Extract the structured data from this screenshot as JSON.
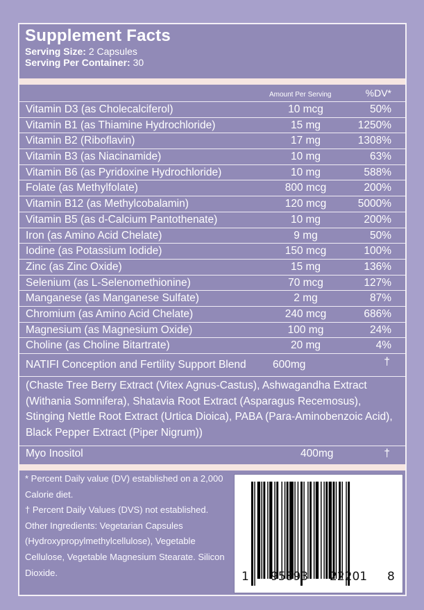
{
  "title": "Supplement Facts",
  "serving_size_label": "Serving Size:",
  "serving_size": "2 Capsules",
  "serving_per_container_label": "Serving Per Container:",
  "serving_per_container": "30",
  "header": {
    "amount": "Amount Per Serving",
    "dv": "%DV*"
  },
  "rows": [
    {
      "name": "Vitamin D3 (as Cholecalciferol)",
      "amount": "10 mcg",
      "dv": "50%"
    },
    {
      "name": "Vitamin B1 (as Thiamine Hydrochloride)",
      "amount": "15 mg",
      "dv": "1250%"
    },
    {
      "name": "Vitamin B2 (Riboflavin)",
      "amount": "17 mg",
      "dv": "1308%"
    },
    {
      "name": "Vitamin B3 (as Niacinamide)",
      "amount": "10 mg",
      "dv": "63%"
    },
    {
      "name": "Vitamin B6 (as Pyridoxine Hydrochloride)",
      "amount": "10 mg",
      "dv": "588%"
    },
    {
      "name": "Folate (as Methylfolate)",
      "amount": "800 mcg",
      "dv": "200%"
    },
    {
      "name": "Vitamin B12 (as Methylcobalamin)",
      "amount": "120 mcg",
      "dv": "5000%"
    },
    {
      "name": "Vitamin B5 (as d-Calcium Pantothenate)",
      "amount": "10 mg",
      "dv": "200%"
    },
    {
      "name": "Iron (as Amino Acid Chelate)",
      "amount": "9 mg",
      "dv": "50%"
    },
    {
      "name": "Iodine (as Potassium Iodide)",
      "amount": "150 mcg",
      "dv": "100%"
    },
    {
      "name": "Zinc (as Zinc Oxide)",
      "amount": "15 mg",
      "dv": "136%"
    },
    {
      "name": "Selenium (as L-Selenomethionine)",
      "amount": "70 mcg",
      "dv": "127%"
    },
    {
      "name": "Manganese (as Manganese Sulfate)",
      "amount": "2 mg",
      "dv": "87%"
    },
    {
      "name": "Chromium (as Amino Acid Chelate)",
      "amount": "240 mcg",
      "dv": "686%"
    },
    {
      "name": "Magnesium (as Magnesium Oxide)",
      "amount": "100 mg",
      "dv": "24%"
    },
    {
      "name": "Choline (as Choline Bitartrate)",
      "amount": "20 mg",
      "dv": "4%"
    }
  ],
  "blend": {
    "name": "NATIFI Conception and Fertility Support Blend",
    "amount": "600mg",
    "dv": "†",
    "ingredients": "(Chaste Tree Berry Extract (Vitex Agnus-Castus), Ashwagandha Extract (Withania Somnifera), Shatavia Root Extract (Asparagus Recemosus), Stinging Nettle Root Extract (Urtica Dioica), PABA (Para-Aminobenzoic Acid), Black Pepper Extract (Piper Nigrum))"
  },
  "myo": {
    "name": "Myo Inositol",
    "amount": "400mg",
    "dv": "†"
  },
  "footnotes": {
    "dv_note": "* Percent Daily value (DV) established on a 2,000 Calorie diet.",
    "dagger_note": "† Percent Daily Values (DVS) not established.",
    "other": "Other Ingredients: Vegetarian Capsules (Hydroxypropylmethylcellulose), Vegetable Cellulose, Vegetable Magnesium Stearate. Silicon Dioxide."
  },
  "barcode": {
    "d1": "1",
    "d2": "95893",
    "d3": "22201",
    "d4": "8"
  },
  "colors": {
    "panel": "#918ab7",
    "background": "#a7a0cb",
    "band": "#f6e6e2"
  }
}
